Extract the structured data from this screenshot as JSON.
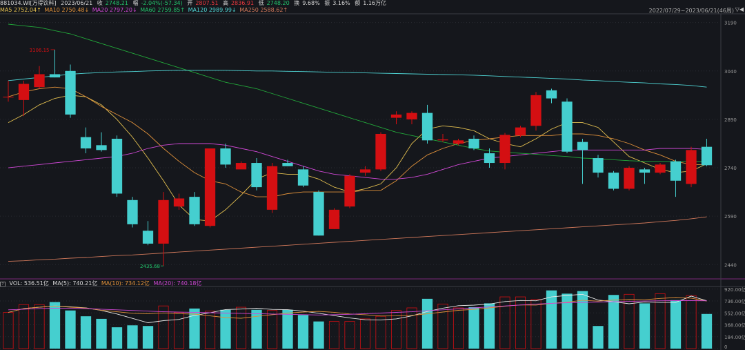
{
  "header": {
    "code": "881034.WI[万得饮料]",
    "date": "2023/06/21",
    "close_label": "收",
    "close": "2748.21",
    "change_label": "幅",
    "change": "-2.04%(-57.34)",
    "open_label": "开",
    "open": "2807.51",
    "high_label": "高",
    "high": "2836.91",
    "low_label": "低",
    "low": "2748.20",
    "turnover_label": "换",
    "turnover": "9.68%",
    "amplitude_label": "振",
    "amplitude": "3.16%",
    "volume_label": "额",
    "volume": "1.16万亿"
  },
  "ma_legend": {
    "ma5": "MA5 2752.04↑",
    "ma10": "MA10 2750.48↓",
    "ma20": "MA20 2797.20↓",
    "ma60": "MA60 2759.85↑",
    "ma120": "MA120 2989.99↓",
    "ma250": "MA250 2588.62↑"
  },
  "date_range": "2022/07/29~2023/06/21(46周)",
  "date_range_icons": "▽◀",
  "vol_legend": {
    "help": "?",
    "vol": "VOL: 536.51亿",
    "ma5": "MA(5): 740.21亿",
    "ma10": "MA(10): 734.12亿",
    "ma20": "MA(20): 740.18亿"
  },
  "annotations": {
    "high_mark": "3106.15",
    "low_mark": "2435.68"
  },
  "colors": {
    "background": "#15171c",
    "up": "#d40f12",
    "down": "#45cfcf",
    "ma5": "#e5c150",
    "ma10": "#e0913a",
    "ma20": "#d048d6",
    "ma60": "#22a73a",
    "ma120": "#4fd4d4",
    "ma250": "#d0785a",
    "grid": "#2a2c33"
  },
  "chart_data": [
    {
      "type": "candlestick",
      "title": "",
      "y_ticks": [
        "3190",
        "3040",
        "2890",
        "2740",
        "2590",
        "2440"
      ],
      "ylim": [
        2400,
        3215
      ],
      "grid": true,
      "candles": [
        {
          "o": 2960,
          "h": 3010,
          "l": 2945,
          "c": 2960
        },
        {
          "o": 2950,
          "h": 3010,
          "l": 2900,
          "c": 3000
        },
        {
          "o": 2990,
          "h": 3055,
          "l": 2985,
          "c": 3030
        },
        {
          "o": 3030,
          "h": 3106,
          "l": 3020,
          "c": 3020
        },
        {
          "o": 3040,
          "h": 3060,
          "l": 2895,
          "c": 2905
        },
        {
          "o": 2835,
          "h": 2865,
          "l": 2785,
          "c": 2800
        },
        {
          "o": 2810,
          "h": 2850,
          "l": 2790,
          "c": 2795
        },
        {
          "o": 2830,
          "h": 2840,
          "l": 2650,
          "c": 2660
        },
        {
          "o": 2640,
          "h": 2650,
          "l": 2555,
          "c": 2565
        },
        {
          "o": 2545,
          "h": 2575,
          "l": 2500,
          "c": 2505
        },
        {
          "o": 2505,
          "h": 2665,
          "l": 2436,
          "c": 2640
        },
        {
          "o": 2620,
          "h": 2660,
          "l": 2610,
          "c": 2645
        },
        {
          "o": 2650,
          "h": 2665,
          "l": 2560,
          "c": 2565
        },
        {
          "o": 2560,
          "h": 2800,
          "l": 2555,
          "c": 2800
        },
        {
          "o": 2800,
          "h": 2815,
          "l": 2740,
          "c": 2750
        },
        {
          "o": 2735,
          "h": 2760,
          "l": 2740,
          "c": 2755
        },
        {
          "o": 2755,
          "h": 2770,
          "l": 2670,
          "c": 2680
        },
        {
          "o": 2610,
          "h": 2755,
          "l": 2600,
          "c": 2745
        },
        {
          "o": 2755,
          "h": 2765,
          "l": 2745,
          "c": 2745
        },
        {
          "o": 2735,
          "h": 2745,
          "l": 2680,
          "c": 2685
        },
        {
          "o": 2665,
          "h": 2670,
          "l": 2530,
          "c": 2530
        },
        {
          "o": 2550,
          "h": 2615,
          "l": 2550,
          "c": 2610
        },
        {
          "o": 2620,
          "h": 2720,
          "l": 2615,
          "c": 2715
        },
        {
          "o": 2725,
          "h": 2745,
          "l": 2715,
          "c": 2735
        },
        {
          "o": 2735,
          "h": 2850,
          "l": 2730,
          "c": 2845
        },
        {
          "o": 2895,
          "h": 2915,
          "l": 2875,
          "c": 2905
        },
        {
          "o": 2890,
          "h": 2915,
          "l": 2875,
          "c": 2910
        },
        {
          "o": 2910,
          "h": 2935,
          "l": 2815,
          "c": 2825
        },
        {
          "o": 2825,
          "h": 2845,
          "l": 2820,
          "c": 2828
        },
        {
          "o": 2815,
          "h": 2830,
          "l": 2810,
          "c": 2825
        },
        {
          "o": 2830,
          "h": 2840,
          "l": 2795,
          "c": 2800
        },
        {
          "o": 2785,
          "h": 2800,
          "l": 2740,
          "c": 2755
        },
        {
          "o": 2755,
          "h": 2848,
          "l": 2735,
          "c": 2842
        },
        {
          "o": 2840,
          "h": 2870,
          "l": 2835,
          "c": 2865
        },
        {
          "o": 2870,
          "h": 2975,
          "l": 2855,
          "c": 2965
        },
        {
          "o": 2980,
          "h": 2985,
          "l": 2940,
          "c": 2955
        },
        {
          "o": 2945,
          "h": 2955,
          "l": 2785,
          "c": 2790
        },
        {
          "o": 2820,
          "h": 2830,
          "l": 2690,
          "c": 2795
        },
        {
          "o": 2770,
          "h": 2780,
          "l": 2710,
          "c": 2725
        },
        {
          "o": 2725,
          "h": 2730,
          "l": 2670,
          "c": 2675
        },
        {
          "o": 2675,
          "h": 2745,
          "l": 2670,
          "c": 2740
        },
        {
          "o": 2735,
          "h": 2740,
          "l": 2690,
          "c": 2725
        },
        {
          "o": 2725,
          "h": 2755,
          "l": 2720,
          "c": 2750
        },
        {
          "o": 2760,
          "h": 2765,
          "l": 2650,
          "c": 2700
        },
        {
          "o": 2690,
          "h": 2805,
          "l": 2680,
          "c": 2795
        },
        {
          "o": 2805,
          "h": 2830,
          "l": 2745,
          "c": 2748
        }
      ],
      "series": [
        {
          "name": "MA5",
          "values": [
            2880,
            2905,
            2935,
            2955,
            2965,
            2960,
            2935,
            2890,
            2835,
            2770,
            2700,
            2625,
            2580,
            2575,
            2610,
            2655,
            2705,
            2725,
            2720,
            2720,
            2705,
            2680,
            2665,
            2675,
            2690,
            2740,
            2815,
            2860,
            2870,
            2865,
            2855,
            2830,
            2815,
            2805,
            2830,
            2860,
            2880,
            2880,
            2865,
            2820,
            2775,
            2755,
            2735,
            2725,
            2730,
            2752
          ]
        },
        {
          "name": "MA10",
          "values": [
            2960,
            2975,
            2985,
            2990,
            2985,
            2960,
            2930,
            2905,
            2880,
            2845,
            2800,
            2760,
            2725,
            2700,
            2690,
            2665,
            2650,
            2650,
            2660,
            2665,
            2665,
            2665,
            2665,
            2670,
            2670,
            2700,
            2745,
            2780,
            2800,
            2815,
            2825,
            2830,
            2835,
            2840,
            2840,
            2840,
            2845,
            2845,
            2840,
            2830,
            2815,
            2795,
            2780,
            2760,
            2750,
            2750
          ]
        },
        {
          "name": "MA20",
          "values": [
            2740,
            2745,
            2750,
            2755,
            2760,
            2765,
            2770,
            2775,
            2785,
            2800,
            2810,
            2815,
            2815,
            2815,
            2810,
            2800,
            2790,
            2775,
            2760,
            2745,
            2730,
            2720,
            2715,
            2710,
            2705,
            2705,
            2710,
            2720,
            2735,
            2750,
            2760,
            2770,
            2775,
            2780,
            2785,
            2790,
            2795,
            2795,
            2795,
            2795,
            2795,
            2795,
            2800,
            2800,
            2800,
            2797
          ]
        },
        {
          "name": "MA60",
          "values": [
            3185,
            3180,
            3175,
            3165,
            3155,
            3140,
            3125,
            3110,
            3095,
            3080,
            3065,
            3050,
            3035,
            3020,
            3005,
            2995,
            2985,
            2970,
            2955,
            2940,
            2925,
            2910,
            2895,
            2880,
            2865,
            2850,
            2840,
            2830,
            2820,
            2810,
            2800,
            2792,
            2788,
            2785,
            2782,
            2778,
            2775,
            2770,
            2768,
            2765,
            2762,
            2760,
            2760,
            2759,
            2760,
            2760
          ]
        },
        {
          "name": "MA120",
          "values": [
            3010,
            3015,
            3020,
            3025,
            3030,
            3033,
            3035,
            3037,
            3038,
            3040,
            3041,
            3042,
            3042,
            3042,
            3042,
            3041,
            3040,
            3040,
            3039,
            3038,
            3037,
            3036,
            3035,
            3034,
            3033,
            3032,
            3031,
            3030,
            3029,
            3028,
            3027,
            3025,
            3023,
            3021,
            3019,
            3017,
            3015,
            3012,
            3010,
            3007,
            3005,
            3003,
            3000,
            2998,
            2995,
            2990
          ]
        },
        {
          "name": "MA250",
          "values": [
            2450,
            2452,
            2455,
            2457,
            2460,
            2462,
            2465,
            2468,
            2470,
            2473,
            2476,
            2479,
            2482,
            2485,
            2488,
            2491,
            2494,
            2497,
            2500,
            2503,
            2506,
            2509,
            2512,
            2515,
            2518,
            2521,
            2524,
            2527,
            2530,
            2533,
            2536,
            2539,
            2542,
            2545,
            2548,
            2551,
            2554,
            2557,
            2560,
            2563,
            2566,
            2569,
            2573,
            2577,
            2582,
            2588
          ]
        }
      ]
    },
    {
      "type": "bar",
      "title": "",
      "y_ticks": [
        "920.00亿",
        "736.00亿",
        "552.00亿",
        "368.00亿",
        "184.00亿",
        "0"
      ],
      "ylim": [
        0,
        950
      ],
      "values": [
        560,
        680,
        680,
        720,
        590,
        500,
        460,
        330,
        360,
        350,
        660,
        560,
        620,
        580,
        600,
        640,
        600,
        590,
        600,
        520,
        420,
        420,
        420,
        460,
        500,
        590,
        630,
        770,
        690,
        630,
        640,
        700,
        800,
        800,
        760,
        900,
        850,
        890,
        350,
        830,
        840,
        700,
        850,
        750,
        820,
        536
      ],
      "series": [
        {
          "name": "MA(5)",
          "values": [
            560,
            620,
            640,
            660,
            646,
            630,
            590,
            536,
            468,
            400,
            432,
            452,
            514,
            554,
            604,
            612,
            624,
            606,
            602,
            580,
            546,
            510,
            474,
            446,
            444,
            460,
            506,
            574,
            626,
            664,
            672,
            690,
            728,
            744,
            740,
            800,
            822,
            840,
            750,
            726,
            694,
            722,
            714,
            714,
            812,
            740
          ]
        },
        {
          "name": "MA(10)",
          "values": [
            560,
            620,
            640,
            660,
            640,
            628,
            594,
            570,
            546,
            540,
            552,
            540,
            534,
            506,
            480,
            470,
            498,
            524,
            550,
            566,
            575,
            561,
            536,
            524,
            505,
            506,
            515,
            539,
            566,
            592,
            606,
            630,
            656,
            676,
            674,
            700,
            718,
            748,
            734,
            750,
            758,
            756,
            776,
            790,
            780,
            734
          ]
        },
        {
          "name": "MA(20)",
          "values": [
            600,
            610,
            620,
            625,
            625,
            620,
            610,
            600,
            590,
            580,
            570,
            565,
            560,
            555,
            550,
            545,
            540,
            535,
            530,
            525,
            520,
            525,
            530,
            540,
            550,
            560,
            570,
            585,
            600,
            615,
            630,
            645,
            660,
            675,
            690,
            700,
            710,
            715,
            720,
            725,
            730,
            735,
            740,
            742,
            742,
            740
          ]
        }
      ]
    }
  ]
}
